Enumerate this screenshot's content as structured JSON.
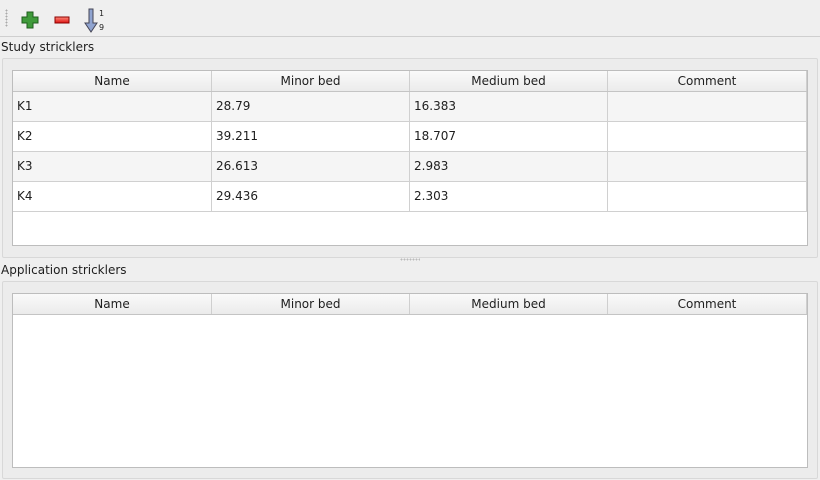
{
  "toolbar": {
    "add_icon": "plus-icon",
    "remove_icon": "minus-icon",
    "sort_icon": "sort-ascending-icon",
    "sort_top": "1",
    "sort_bottom": "9"
  },
  "study": {
    "title": "Study stricklers",
    "columns": [
      "Name",
      "Minor bed",
      "Medium bed",
      "Comment"
    ],
    "rows": [
      [
        "K1",
        "28.79",
        "16.383",
        ""
      ],
      [
        "K2",
        "39.211",
        "18.707",
        ""
      ],
      [
        "K3",
        "26.613",
        "2.983",
        ""
      ],
      [
        "K4",
        "29.436",
        "2.303",
        ""
      ]
    ]
  },
  "application": {
    "title": "Application stricklers",
    "columns": [
      "Name",
      "Minor bed",
      "Medium bed",
      "Comment"
    ],
    "rows": []
  }
}
